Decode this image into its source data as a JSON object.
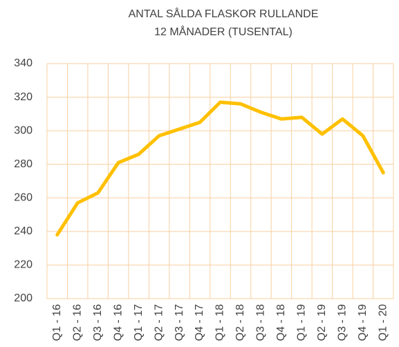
{
  "chart_data": {
    "type": "line",
    "title": [
      "ANTAL SÅLDA FLASKOR RULLANDE",
      "12 MÅNADER (TUSENTAL)"
    ],
    "categories": [
      "Q1 - 16",
      "Q2 - 16",
      "Q3 - 16",
      "Q4 - 16",
      "Q1 - 17",
      "Q2 - 17",
      "Q3 - 17",
      "Q4 - 17",
      "Q1 - 18",
      "Q2 - 18",
      "Q3 - 18",
      "Q4 - 18",
      "Q1 - 19",
      "Q2 - 19",
      "Q3 - 19",
      "Q4 - 19",
      "Q1 - 20"
    ],
    "values": [
      238,
      257,
      263,
      281,
      286,
      297,
      301,
      305,
      317,
      316,
      311,
      307,
      308,
      298,
      307,
      297,
      275
    ],
    "color": "#ffc000",
    "ylim": [
      200,
      340
    ],
    "yticks": [
      200,
      220,
      240,
      260,
      280,
      300,
      320,
      340
    ],
    "grid": true
  }
}
